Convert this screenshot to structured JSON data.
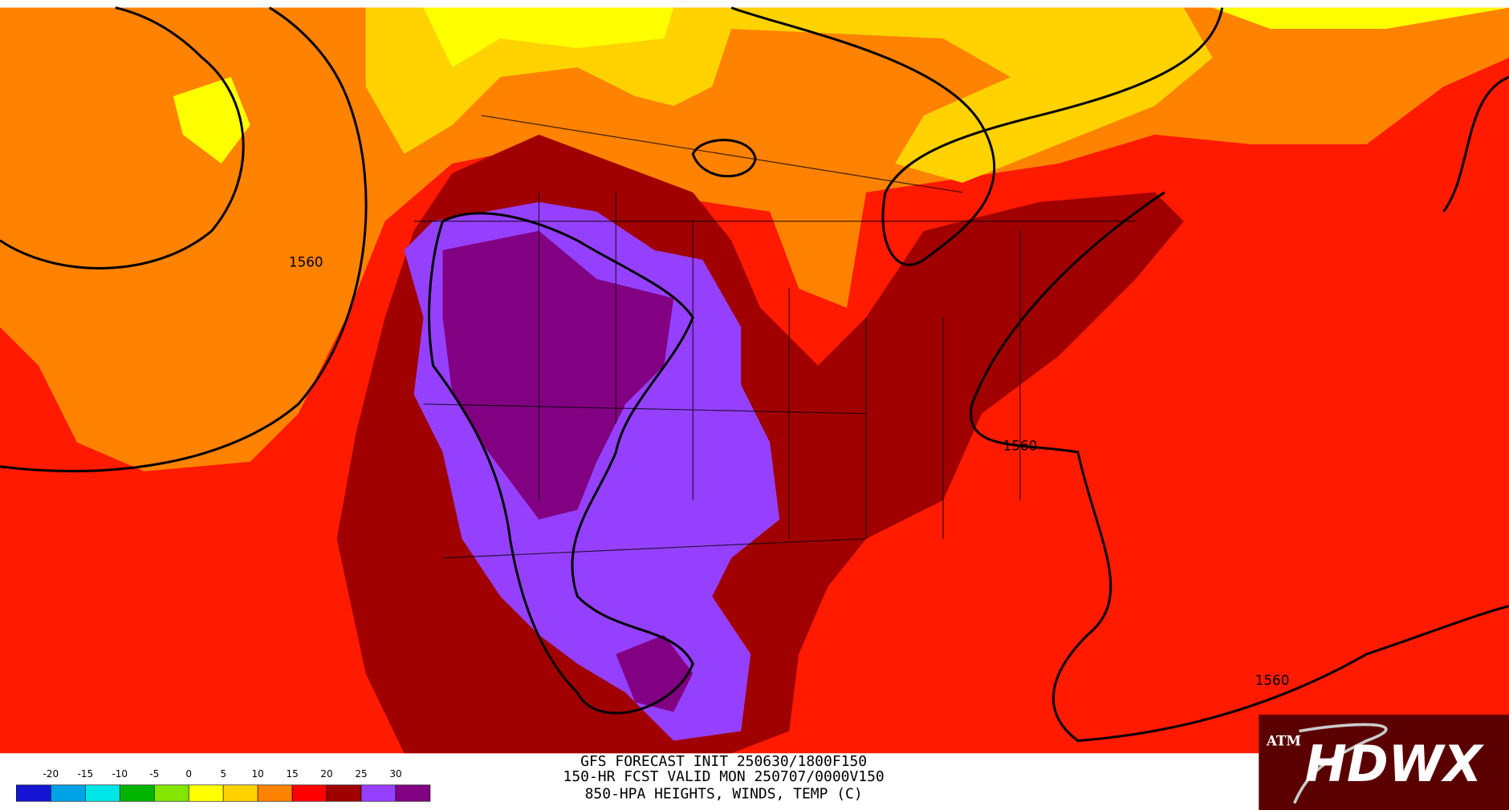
{
  "header": {
    "lines": [
      "GFS FORECAST INIT 250630/1800F150",
      "150-HR FCST VALID MON 250707/0000V150",
      "850-HPA HEIGHTS, WINDS, TEMP (C)"
    ]
  },
  "colorbar": {
    "labels": [
      -20,
      -15,
      -10,
      -5,
      0,
      5,
      10,
      15,
      20,
      25,
      30
    ],
    "colors": [
      "#1414d2",
      "#00a2e6",
      "#00e6e6",
      "#00b400",
      "#82e600",
      "#ffff00",
      "#ffd200",
      "#ff8200",
      "#ff0000",
      "#a00000",
      "#9640ff",
      "#820082"
    ]
  },
  "contour_labels": [
    "1560",
    "1560",
    "1560"
  ],
  "logo": {
    "text": "HDWX"
  }
}
